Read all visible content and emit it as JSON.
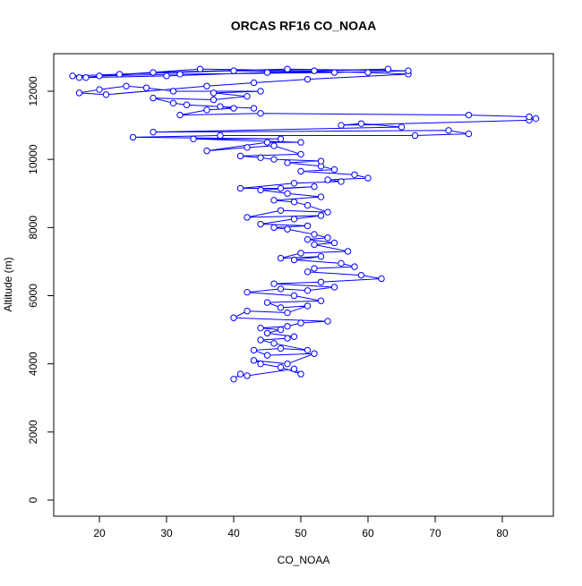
{
  "chart_data": {
    "type": "line",
    "title": "ORCAS RF16 CO_NOAA",
    "x_label": "CO_NOAA",
    "y_label": "Altitude (m)",
    "color": "#0000ff",
    "marker": "circle",
    "x": [
      40,
      41,
      42,
      49,
      50,
      47,
      44,
      43,
      48,
      52,
      45,
      43,
      47,
      51,
      46,
      44,
      48,
      49,
      45,
      47,
      44,
      48,
      50,
      54,
      40,
      42,
      48,
      51,
      47,
      45,
      53,
      49,
      42,
      47,
      51,
      55,
      46,
      53,
      62,
      59,
      51,
      52,
      58,
      56,
      49,
      53,
      47,
      50,
      57,
      52,
      55,
      51,
      54,
      52,
      48,
      46,
      51,
      44,
      49,
      53,
      42,
      47,
      54,
      51,
      49,
      46,
      53,
      48,
      44,
      52,
      47,
      41,
      49,
      56,
      54,
      60,
      58,
      50,
      55,
      53,
      48,
      53,
      46,
      44,
      41,
      50,
      46,
      42,
      36,
      45,
      50,
      34,
      47,
      25,
      38,
      67,
      75,
      72,
      28,
      65,
      59,
      56,
      84,
      85,
      84,
      75,
      44,
      32,
      36,
      40,
      38,
      43,
      33,
      31,
      28,
      37,
      42,
      37,
      44,
      31,
      27,
      24,
      20,
      17,
      21,
      36,
      43,
      51,
      66,
      60,
      40,
      23,
      16,
      18,
      30,
      45,
      63,
      52,
      35,
      20,
      32,
      55,
      66,
      48,
      28,
      17
    ],
    "values": [
      3550,
      3700,
      3650,
      3850,
      3700,
      3900,
      4000,
      4100,
      4000,
      4300,
      4250,
      4400,
      4450,
      4400,
      4600,
      4700,
      4750,
      4800,
      4900,
      5000,
      5050,
      5100,
      5200,
      5250,
      5350,
      5550,
      5500,
      5700,
      5650,
      5800,
      5850,
      6000,
      6100,
      6200,
      6150,
      6250,
      6350,
      6400,
      6500,
      6600,
      6700,
      6800,
      6850,
      6950,
      7050,
      7150,
      7100,
      7250,
      7300,
      7500,
      7550,
      7650,
      7700,
      7800,
      7950,
      8000,
      8050,
      8100,
      8250,
      8350,
      8300,
      8500,
      8450,
      8650,
      8750,
      8800,
      8900,
      9000,
      9100,
      9200,
      9150,
      9150,
      9300,
      9350,
      9400,
      9450,
      9550,
      9650,
      9700,
      9800,
      9900,
      9950,
      10000,
      10050,
      10100,
      10150,
      10400,
      10350,
      10250,
      10500,
      10500,
      10600,
      10600,
      10650,
      10700,
      10700,
      10750,
      10850,
      10800,
      10950,
      11050,
      11000,
      11150,
      11200,
      11250,
      11300,
      11350,
      11300,
      11450,
      11500,
      11550,
      11500,
      11600,
      11650,
      11800,
      11750,
      11850,
      11950,
      12000,
      12000,
      12100,
      12150,
      12050,
      11950,
      11900,
      12150,
      12250,
      12350,
      12500,
      12550,
      12600,
      12500,
      12450,
      12400,
      12450,
      12550,
      12650,
      12600,
      12650,
      12450,
      12500,
      12550,
      12600,
      12650,
      12550,
      12400
    ],
    "xlim": [
      13.2,
      87.6
    ],
    "ylim": [
      -472,
      13102
    ],
    "xticks": [
      20,
      30,
      40,
      50,
      60,
      70,
      80
    ],
    "yticks": [
      0,
      2000,
      4000,
      6000,
      8000,
      10000,
      12000
    ]
  }
}
